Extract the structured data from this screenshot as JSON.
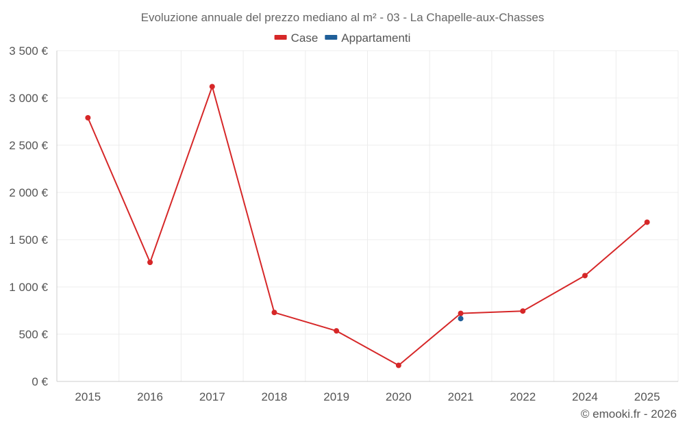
{
  "chart_data": {
    "type": "line",
    "title": "Evoluzione annuale del prezzo mediano al m² - 03 - La Chapelle-aux-Chasses",
    "categories": [
      "2015",
      "2016",
      "2017",
      "2018",
      "2019",
      "2020",
      "2021",
      "2022",
      "2024",
      "2025"
    ],
    "series": [
      {
        "name": "Case",
        "color": "#d62728",
        "values": [
          2790,
          1260,
          3120,
          730,
          535,
          170,
          720,
          745,
          1120,
          1685
        ]
      },
      {
        "name": "Appartamenti",
        "color": "#1f5f99",
        "values": [
          null,
          null,
          null,
          null,
          null,
          null,
          665,
          null,
          null,
          null
        ]
      }
    ],
    "ylim": [
      0,
      3500
    ],
    "yticks": [
      0,
      500,
      1000,
      1500,
      2000,
      2500,
      3000,
      3500
    ],
    "ytick_labels": [
      "0 €",
      "500 €",
      "1 000 €",
      "1 500 €",
      "2 000 €",
      "2 500 €",
      "3 000 €",
      "3 500 €"
    ],
    "legend_position": "top-center",
    "grid": true,
    "credit": "© emooki.fr - 2026"
  }
}
